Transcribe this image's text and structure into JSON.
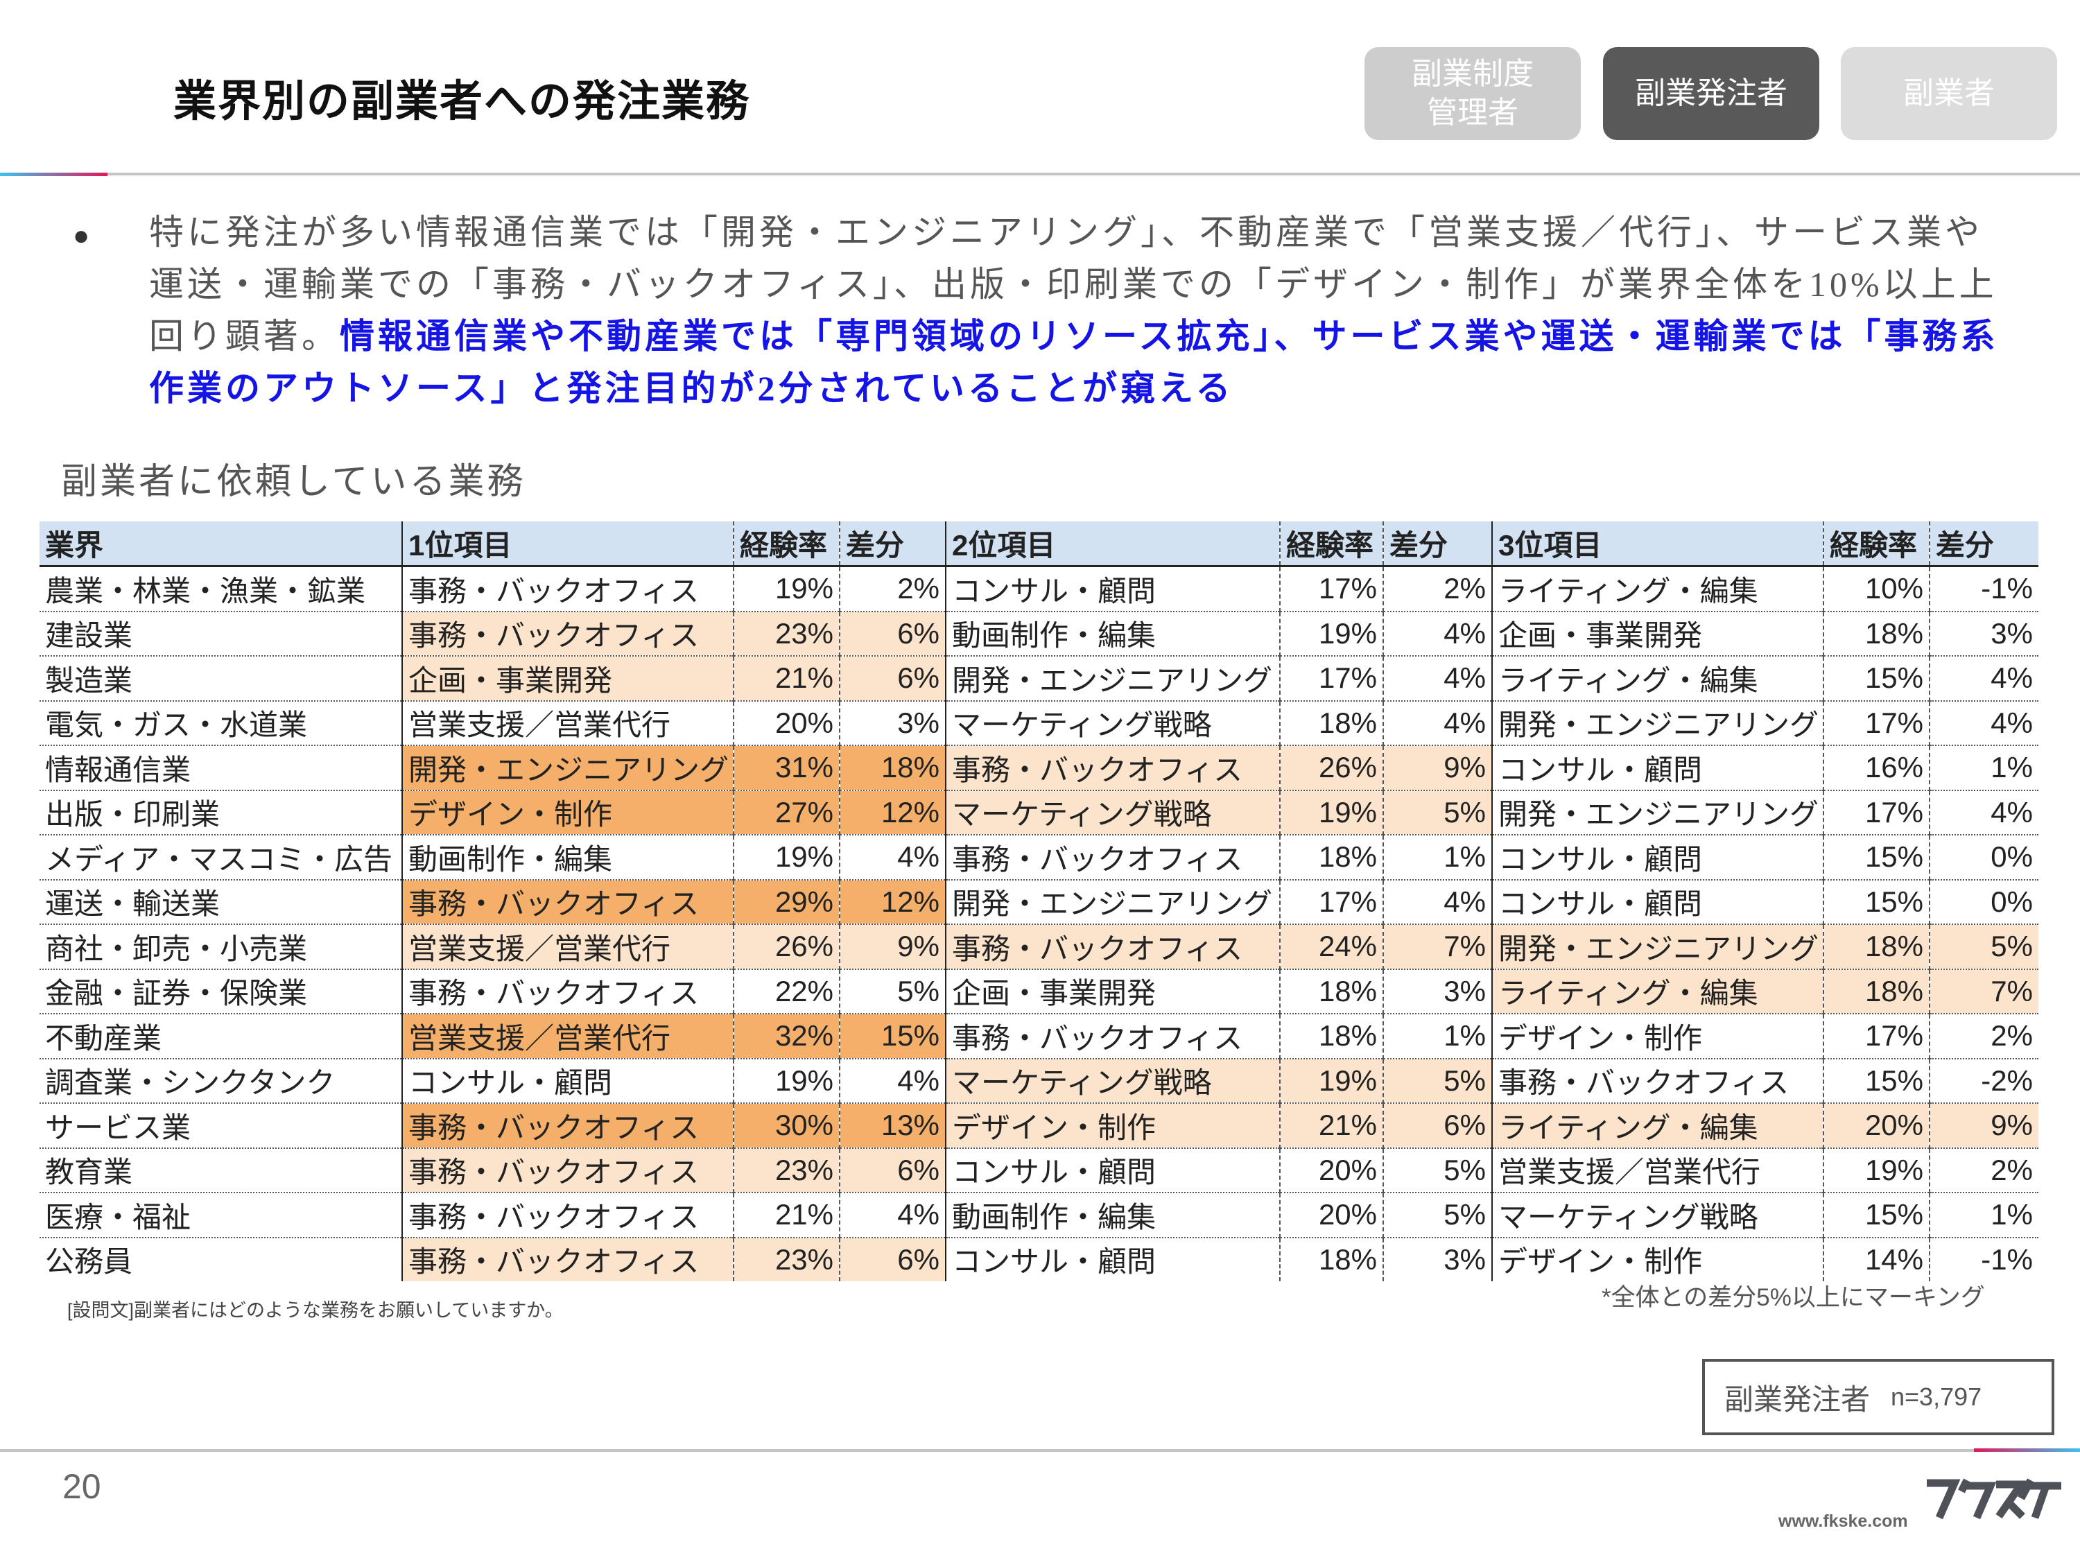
{
  "header": {
    "title": "業界別の副業者への発注業務",
    "segments": [
      {
        "label": "副業制度\n管理者",
        "active": false
      },
      {
        "label": "副業発注者",
        "active": true
      },
      {
        "label": "副業者",
        "active": false
      }
    ]
  },
  "summary": {
    "normal": "特に発注が多い情報通信業では「開発・エンジニアリング」、不動産業で「営業支援／代行」、サービス業や運送・運輸業での「事務・バックオフィス」、出版・印刷業での「デザイン・制作」が業界全体を10%以上上回り顕著。",
    "emphasis": "情報通信業や不動産業では「専門領域のリソース拡充」、サービス業や運送・運輸業では「事務系作業のアウトソース」と発注目的が2分されていることが窺える",
    "emphasis_color": "#1414e6"
  },
  "table_title": "副業者に依頼している業務",
  "table": {
    "headers": [
      "業界",
      "1位項目",
      "経験率",
      "差分",
      "2位項目",
      "経験率",
      "差分",
      "3位項目",
      "経験率",
      "差分"
    ],
    "highlight_colors": {
      "light": "#fbe4cb",
      "strong": "#f4b06b"
    },
    "rows": [
      {
        "industry": "農業・林業・漁業・鉱業",
        "items": [
          {
            "name": "事務・バックオフィス",
            "rate": "19%",
            "diff": "2%",
            "hl": 0
          },
          {
            "name": "コンサル・顧問",
            "rate": "17%",
            "diff": "2%",
            "hl": 0
          },
          {
            "name": "ライティング・編集",
            "rate": "10%",
            "diff": "-1%",
            "hl": 0
          }
        ]
      },
      {
        "industry": "建設業",
        "items": [
          {
            "name": "事務・バックオフィス",
            "rate": "23%",
            "diff": "6%",
            "hl": 1
          },
          {
            "name": "動画制作・編集",
            "rate": "19%",
            "diff": "4%",
            "hl": 0
          },
          {
            "name": "企画・事業開発",
            "rate": "18%",
            "diff": "3%",
            "hl": 0
          }
        ]
      },
      {
        "industry": "製造業",
        "items": [
          {
            "name": "企画・事業開発",
            "rate": "21%",
            "diff": "6%",
            "hl": 1
          },
          {
            "name": "開発・エンジニアリング",
            "rate": "17%",
            "diff": "4%",
            "hl": 0
          },
          {
            "name": "ライティング・編集",
            "rate": "15%",
            "diff": "4%",
            "hl": 0
          }
        ]
      },
      {
        "industry": "電気・ガス・水道業",
        "items": [
          {
            "name": "営業支援／営業代行",
            "rate": "20%",
            "diff": "3%",
            "hl": 0
          },
          {
            "name": "マーケティング戦略",
            "rate": "18%",
            "diff": "4%",
            "hl": 0
          },
          {
            "name": "開発・エンジニアリング",
            "rate": "17%",
            "diff": "4%",
            "hl": 0
          }
        ]
      },
      {
        "industry": "情報通信業",
        "items": [
          {
            "name": "開発・エンジニアリング",
            "rate": "31%",
            "diff": "18%",
            "hl": 2
          },
          {
            "name": "事務・バックオフィス",
            "rate": "26%",
            "diff": "9%",
            "hl": 1
          },
          {
            "name": "コンサル・顧問",
            "rate": "16%",
            "diff": "1%",
            "hl": 0
          }
        ]
      },
      {
        "industry": "出版・印刷業",
        "items": [
          {
            "name": "デザイン・制作",
            "rate": "27%",
            "diff": "12%",
            "hl": 2
          },
          {
            "name": "マーケティング戦略",
            "rate": "19%",
            "diff": "5%",
            "hl": 1
          },
          {
            "name": "開発・エンジニアリング",
            "rate": "17%",
            "diff": "4%",
            "hl": 0
          }
        ]
      },
      {
        "industry": "メディア・マスコミ・広告",
        "items": [
          {
            "name": "動画制作・編集",
            "rate": "19%",
            "diff": "4%",
            "hl": 0
          },
          {
            "name": "事務・バックオフィス",
            "rate": "18%",
            "diff": "1%",
            "hl": 0
          },
          {
            "name": "コンサル・顧問",
            "rate": "15%",
            "diff": "0%",
            "hl": 0
          }
        ]
      },
      {
        "industry": "運送・輸送業",
        "items": [
          {
            "name": "事務・バックオフィス",
            "rate": "29%",
            "diff": "12%",
            "hl": 2
          },
          {
            "name": "開発・エンジニアリング",
            "rate": "17%",
            "diff": "4%",
            "hl": 0
          },
          {
            "name": "コンサル・顧問",
            "rate": "15%",
            "diff": "0%",
            "hl": 0
          }
        ]
      },
      {
        "industry": "商社・卸売・小売業",
        "items": [
          {
            "name": "営業支援／営業代行",
            "rate": "26%",
            "diff": "9%",
            "hl": 1
          },
          {
            "name": "事務・バックオフィス",
            "rate": "24%",
            "diff": "7%",
            "hl": 1
          },
          {
            "name": "開発・エンジニアリング",
            "rate": "18%",
            "diff": "5%",
            "hl": 1
          }
        ]
      },
      {
        "industry": "金融・証券・保険業",
        "items": [
          {
            "name": "事務・バックオフィス",
            "rate": "22%",
            "diff": "5%",
            "hl": 0
          },
          {
            "name": "企画・事業開発",
            "rate": "18%",
            "diff": "3%",
            "hl": 0
          },
          {
            "name": "ライティング・編集",
            "rate": "18%",
            "diff": "7%",
            "hl": 1
          }
        ]
      },
      {
        "industry": "不動産業",
        "items": [
          {
            "name": "営業支援／営業代行",
            "rate": "32%",
            "diff": "15%",
            "hl": 2
          },
          {
            "name": "事務・バックオフィス",
            "rate": "18%",
            "diff": "1%",
            "hl": 0
          },
          {
            "name": "デザイン・制作",
            "rate": "17%",
            "diff": "2%",
            "hl": 0
          }
        ]
      },
      {
        "industry": "調査業・シンクタンク",
        "items": [
          {
            "name": "コンサル・顧問",
            "rate": "19%",
            "diff": "4%",
            "hl": 0
          },
          {
            "name": "マーケティング戦略",
            "rate": "19%",
            "diff": "5%",
            "hl": 1
          },
          {
            "name": "事務・バックオフィス",
            "rate": "15%",
            "diff": "-2%",
            "hl": 0
          }
        ]
      },
      {
        "industry": "サービス業",
        "items": [
          {
            "name": "事務・バックオフィス",
            "rate": "30%",
            "diff": "13%",
            "hl": 2
          },
          {
            "name": "デザイン・制作",
            "rate": "21%",
            "diff": "6%",
            "hl": 1
          },
          {
            "name": "ライティング・編集",
            "rate": "20%",
            "diff": "9%",
            "hl": 1
          }
        ]
      },
      {
        "industry": "教育業",
        "items": [
          {
            "name": "事務・バックオフィス",
            "rate": "23%",
            "diff": "6%",
            "hl": 1
          },
          {
            "name": "コンサル・顧問",
            "rate": "20%",
            "diff": "5%",
            "hl": 0
          },
          {
            "name": "営業支援／営業代行",
            "rate": "19%",
            "diff": "2%",
            "hl": 0
          }
        ]
      },
      {
        "industry": "医療・福祉",
        "items": [
          {
            "name": "事務・バックオフィス",
            "rate": "21%",
            "diff": "4%",
            "hl": 0
          },
          {
            "name": "動画制作・編集",
            "rate": "20%",
            "diff": "5%",
            "hl": 0
          },
          {
            "name": "マーケティング戦略",
            "rate": "15%",
            "diff": "1%",
            "hl": 0
          }
        ]
      },
      {
        "industry": "公務員",
        "items": [
          {
            "name": "事務・バックオフィス",
            "rate": "23%",
            "diff": "6%",
            "hl": 1
          },
          {
            "name": "コンサル・顧問",
            "rate": "18%",
            "diff": "3%",
            "hl": 0
          },
          {
            "name": "デザイン・制作",
            "rate": "14%",
            "diff": "-1%",
            "hl": 0
          }
        ]
      }
    ]
  },
  "footnotes": {
    "question": "[設問文]副業者にはどのような業務をお願いしていますか。",
    "marking": "*全体との差分5%以上にマーキング"
  },
  "sample": {
    "label": "副業発注者",
    "n": "n=3,797"
  },
  "footer": {
    "page_number": "20",
    "url": "www.fkske.com",
    "logo_text": "フクスケ"
  }
}
